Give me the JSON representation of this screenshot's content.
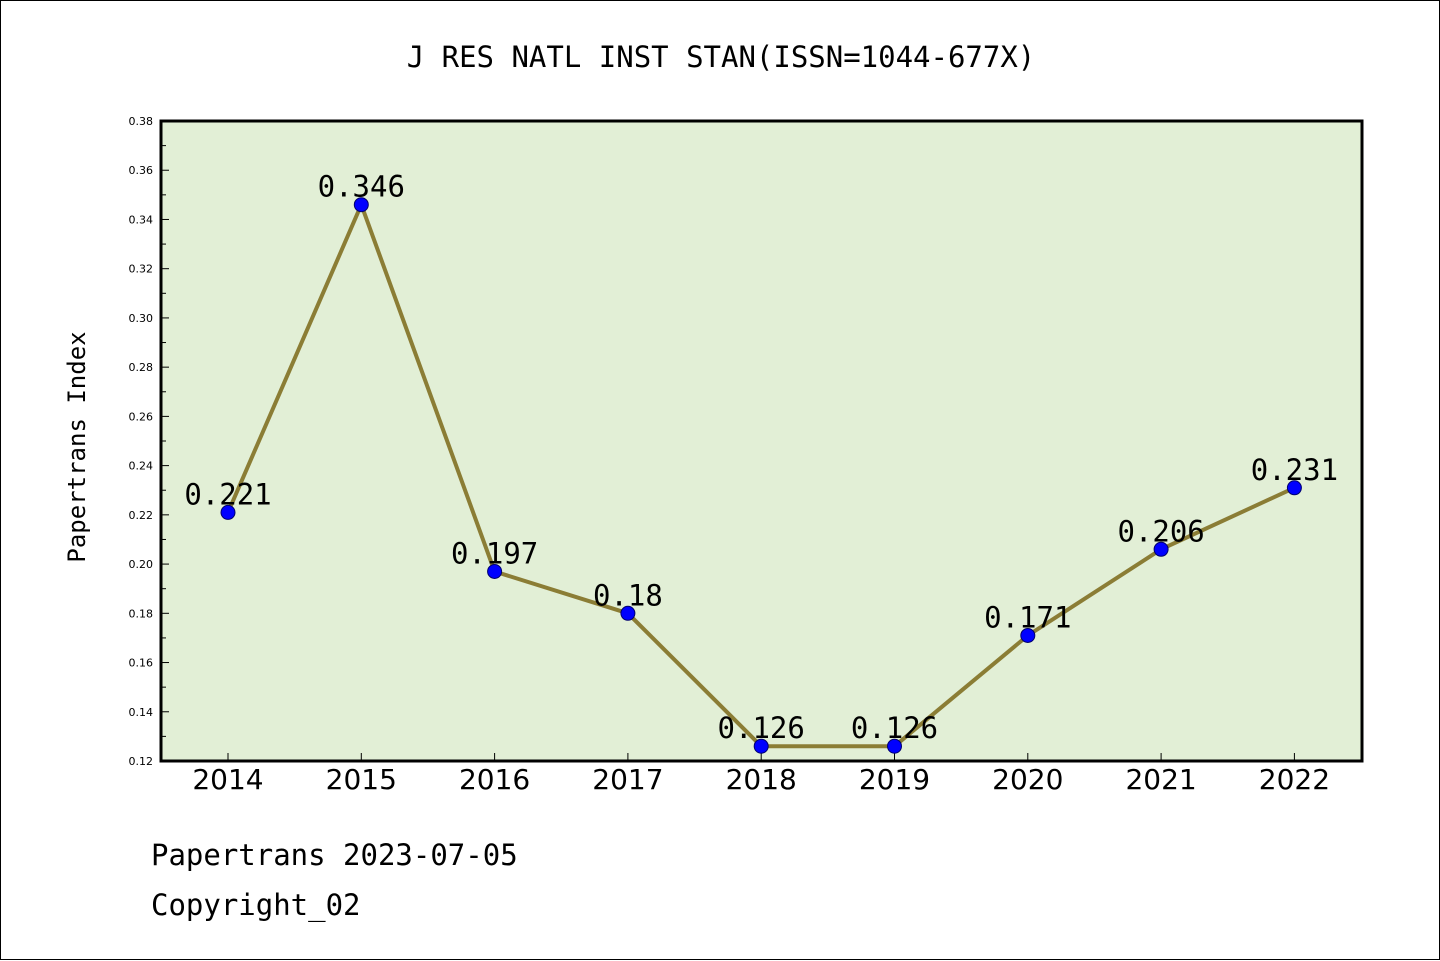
{
  "chart_data": {
    "type": "line",
    "title": "J RES NATL INST STAN(ISSN=1044-677X)",
    "xlabel": "",
    "ylabel": "Papertrans Index",
    "x": [
      "2014",
      "2015",
      "2016",
      "2017",
      "2018",
      "2019",
      "2020",
      "2021",
      "2022"
    ],
    "series": [
      {
        "values": [
          0.221,
          0.346,
          0.197,
          0.18,
          0.126,
          0.126,
          0.171,
          0.206,
          0.231
        ],
        "labels": [
          "0.221",
          "0.346",
          "0.197",
          "0.18",
          "0.126",
          "0.126",
          "0.171",
          "0.206",
          "0.231"
        ]
      }
    ],
    "ylim": [
      0.12,
      0.38
    ],
    "yticks": [
      "0.12",
      "0.14",
      "0.16",
      "0.18",
      "0.20",
      "0.22",
      "0.24",
      "0.26",
      "0.28",
      "0.30",
      "0.32",
      "0.34",
      "0.36",
      "0.38"
    ],
    "grid": false,
    "legend": "none",
    "colors": {
      "line": "#8b7d35",
      "marker": "#0000ff",
      "plot_background": "#e2efd6"
    }
  },
  "footer": {
    "line1": "Papertrans 2023-07-05",
    "line2": "Copyright_02"
  }
}
